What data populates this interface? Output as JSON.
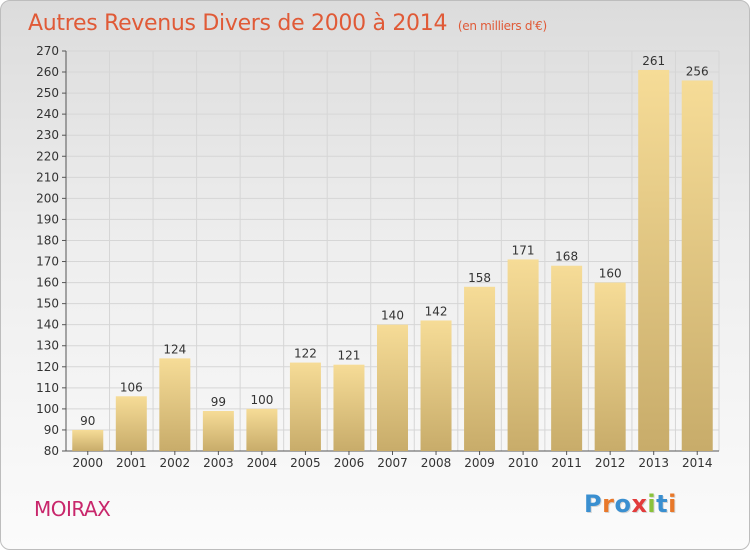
{
  "title": "Autres Revenus Divers de 2000 à 2014",
  "subtitle": "(en milliers d'€)",
  "commune": "MOIRAX",
  "logo": {
    "letters": [
      "P",
      "r",
      "o",
      "x",
      "i",
      "t",
      "i"
    ],
    "colors": [
      "#3a8fd0",
      "#e8782a",
      "#3a8fd0",
      "#e23b3b",
      "#8ac23b",
      "#3a8fd0",
      "#e8782a"
    ]
  },
  "colors": {
    "bar_light": "#f6dc97",
    "bar_dark": "#c8ac6a",
    "grid": "#d6d6d6",
    "title": "#e05a37",
    "commune": "#c8266b"
  },
  "chart_data": {
    "type": "bar",
    "categories": [
      "2000",
      "2001",
      "2002",
      "2003",
      "2004",
      "2005",
      "2006",
      "2007",
      "2008",
      "2009",
      "2010",
      "2011",
      "2012",
      "2013",
      "2014"
    ],
    "values": [
      90,
      106,
      124,
      99,
      100,
      122,
      121,
      140,
      142,
      158,
      171,
      168,
      160,
      261,
      256
    ],
    "ylim": [
      80,
      270
    ],
    "yticks": [
      80,
      90,
      100,
      110,
      120,
      130,
      140,
      150,
      160,
      170,
      180,
      190,
      200,
      210,
      220,
      230,
      240,
      250,
      260,
      270
    ],
    "grid": true,
    "xlabel": "",
    "ylabel": ""
  }
}
